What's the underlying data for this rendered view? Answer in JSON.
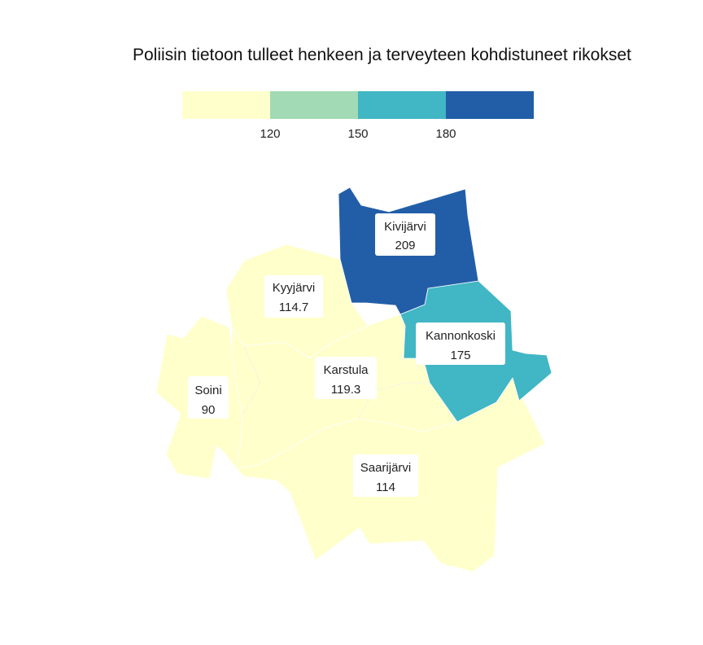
{
  "title": "Poliisin tietoon tulleet henkeen ja terveyteen kohdistuneet rikokset",
  "legend": {
    "colors": [
      "#ffffcc",
      "#a1dab4",
      "#41b6c4",
      "#225ea8"
    ],
    "breaks": [
      "120",
      "150",
      "180"
    ]
  },
  "municipalities": [
    {
      "name": "Kivijärvi",
      "value": "209",
      "color": "#225ea8"
    },
    {
      "name": "Kannonkoski",
      "value": "175",
      "color": "#41b6c4"
    },
    {
      "name": "Kyyjärvi",
      "value": "114.7",
      "color": "#ffffcc"
    },
    {
      "name": "Karstula",
      "value": "119.3",
      "color": "#ffffcc"
    },
    {
      "name": "Soini",
      "value": "90",
      "color": "#ffffcc"
    },
    {
      "name": "Saarijärvi",
      "value": "114",
      "color": "#ffffcc"
    }
  ]
}
